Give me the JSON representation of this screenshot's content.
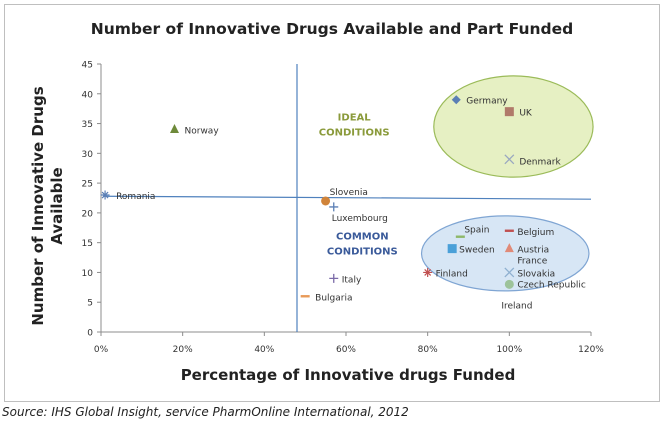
{
  "chart_data": {
    "type": "scatter",
    "title": "Number of Innovative Drugs Available and Part Funded",
    "xlabel": "Percentage of Innovative drugs Funded",
    "ylabel_lines": [
      "Number of Innovative Drugs",
      "Available"
    ],
    "xlim": [
      0,
      120
    ],
    "ylim": [
      0,
      45
    ],
    "x_ticks": [
      0,
      20,
      40,
      60,
      80,
      100,
      120
    ],
    "x_tick_labels": [
      "0%",
      "20%",
      "40%",
      "60%",
      "80%",
      "100%",
      "120%"
    ],
    "y_ticks": [
      0,
      5,
      10,
      15,
      20,
      25,
      30,
      35,
      40,
      45
    ],
    "y_tick_labels": [
      "0",
      "5",
      "10",
      "15",
      "20",
      "25",
      "30",
      "35",
      "40",
      "45"
    ],
    "grid": false,
    "legend": "none",
    "reference_lines": {
      "x": 48,
      "y": 22.5
    },
    "points": [
      {
        "label": "Germany",
        "x": 87,
        "y": 39,
        "marker": "diamond",
        "color": "#5b7fb5"
      },
      {
        "label": "UK",
        "x": 100,
        "y": 37,
        "marker": "square",
        "color": "#b07a6a"
      },
      {
        "label": "Denmark",
        "x": 100,
        "y": 29,
        "marker": "x",
        "color": "#9aa8c0"
      },
      {
        "label": "Norway",
        "x": 18,
        "y": 34,
        "marker": "triangle",
        "color": "#6e8a3a"
      },
      {
        "label": "Romania",
        "x": 1,
        "y": 23,
        "marker": "asterisk",
        "color": "#5b7fb5"
      },
      {
        "label": "Slovenia",
        "x": 55,
        "y": 22,
        "marker": "circle",
        "color": "#d0843a"
      },
      {
        "label": "Luxembourg",
        "x": 57,
        "y": 21,
        "marker": "plus",
        "color": "#5b7fb5"
      },
      {
        "label": "Belgium",
        "x": 100,
        "y": 17,
        "marker": "dash",
        "color": "#c05050"
      },
      {
        "label": "Spain",
        "x": 88,
        "y": 16,
        "marker": "dash",
        "color": "#8db86a"
      },
      {
        "label": "Sweden",
        "x": 86,
        "y": 14,
        "marker": "square",
        "color": "#4aa0d8"
      },
      {
        "label": "Austria",
        "x": 100,
        "y": 14,
        "marker": "triangle",
        "color": "#e08a78"
      },
      {
        "label": "France",
        "x": 100,
        "y": 14,
        "marker": "none",
        "color": "#e08a78"
      },
      {
        "label": "Finland",
        "x": 80,
        "y": 10,
        "marker": "asterisk",
        "color": "#c05050"
      },
      {
        "label": "Slovakia",
        "x": 100,
        "y": 10,
        "marker": "x",
        "color": "#8fb0d0"
      },
      {
        "label": "Czech Republic",
        "x": 100,
        "y": 8,
        "marker": "circle",
        "color": "#9dc39a"
      },
      {
        "label": "Ireland",
        "x": 100,
        "y": 8,
        "marker": "none",
        "color": "#9dc39a"
      },
      {
        "label": "Italy",
        "x": 57,
        "y": 9,
        "marker": "plus",
        "color": "#7a6aa8"
      },
      {
        "label": "Bulgaria",
        "x": 50,
        "y": 6,
        "marker": "dash",
        "color": "#e89a58"
      }
    ],
    "ellipses": [
      {
        "name": "ideal",
        "cx": 101,
        "cy": 34.5,
        "rx": 19.5,
        "ry": 8.5,
        "fill": "#e6f0c3",
        "stroke": "#9bbb59"
      },
      {
        "name": "common",
        "cx": 99,
        "cy": 13.2,
        "rx": 20.5,
        "ry": 6.3,
        "fill": "#d7e6f5",
        "stroke": "#7fa5d3"
      }
    ],
    "annotations": [
      {
        "text_lines": [
          "IDEAL",
          "CONDITIONS"
        ],
        "x": 62,
        "y": 35.5,
        "color": "#8a9a3a"
      },
      {
        "text_lines": [
          "COMMON",
          "CONDITIONS"
        ],
        "x": 64,
        "y": 15.5,
        "color": "#3a5a9a"
      }
    ]
  },
  "source": "Source: IHS Global Insight, service PharmOnline International, 2012"
}
